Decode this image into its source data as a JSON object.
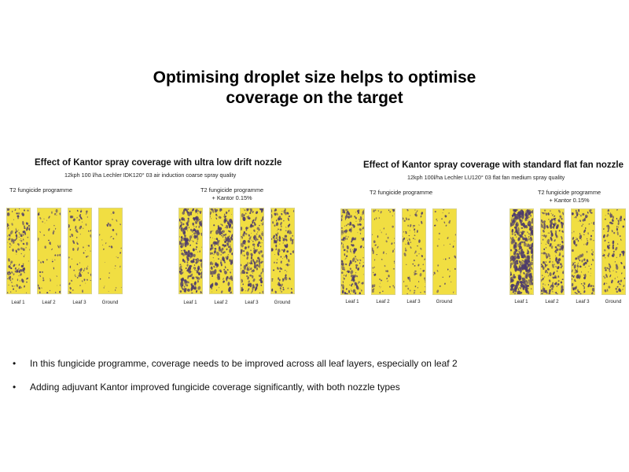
{
  "slide": {
    "title_line1": "Optimising droplet size helps to optimise",
    "title_line2": "coverage on the target"
  },
  "panels": [
    {
      "title": "Effect of Kantor spray coverage with ultra low drift nozzle",
      "subtitle": "12kph 100 l/ha Lechler IDK120° 03 air induction coarse spray quality",
      "groups": [
        {
          "label": "T2 fungicide programme",
          "label2": "",
          "strips": [
            "Leaf 1",
            "Leaf 2",
            "Leaf 3",
            "Ground"
          ]
        },
        {
          "label": "T2 fungicide programme",
          "label2": "+ Kantor 0.15%",
          "strips": [
            "Leaf 1",
            "Leaf 2",
            "Leaf 3",
            "Ground"
          ]
        }
      ]
    },
    {
      "title": "Effect of Kantor spray coverage with standard flat fan nozzle",
      "subtitle": "12kph 100l/ha Lechler LU120° 03 flat fan medium spray quality",
      "groups": [
        {
          "label": "T2 fungicide programme",
          "label2": "",
          "strips": [
            "Leaf 1",
            "Leaf 2",
            "Leaf 3",
            "Ground"
          ]
        },
        {
          "label": "T2 fungicide programme",
          "label2": "+ Kantor 0.15%",
          "strips": [
            "Leaf 1",
            "Leaf 2",
            "Leaf 3",
            "Ground"
          ]
        }
      ]
    }
  ],
  "bullets": [
    "In this fungicide programme, coverage needs to be improved across all leaf layers, especially on leaf 2",
    "Adding adjuvant Kantor improved fungicide coverage significantly, with both nozzle types"
  ],
  "coverage": [
    [
      [
        0.3,
        0.1,
        0.16,
        0.04
      ],
      [
        0.55,
        0.45,
        0.45,
        0.28
      ]
    ],
    [
      [
        0.38,
        0.12,
        0.18,
        0.05
      ],
      [
        0.75,
        0.4,
        0.3,
        0.22
      ]
    ]
  ],
  "colors": {
    "paper": "#f1de42",
    "droplet": "#4b3a6d",
    "strip_border": "#d9d38a"
  },
  "bullet_symbol": "•"
}
